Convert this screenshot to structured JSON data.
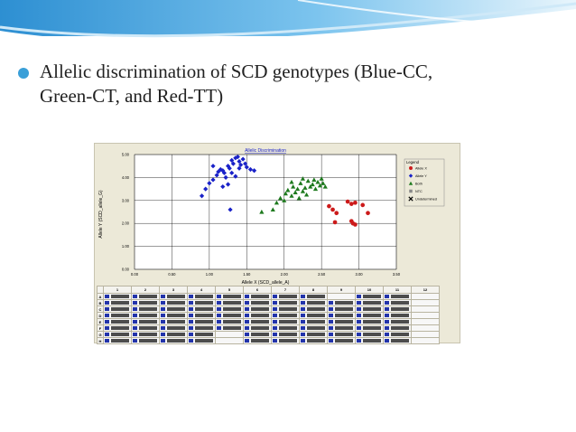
{
  "slide": {
    "bullet_line1": "Allelic discrimination of SCD genotypes (Blue-CC,",
    "bullet_line2": "Green-CT, and Red-TT)",
    "accent_color": "#3a9fd8"
  },
  "chart_data": {
    "type": "scatter",
    "title": "Allelic Discrimination",
    "xlabel": "Allele X (SCD_allele_A)",
    "ylabel": "Allele Y (SCD_allele_G)",
    "xlim": [
      0,
      3.5
    ],
    "ylim": [
      0,
      5
    ],
    "x_ticks": [
      "0.00",
      "0.50",
      "1.00",
      "1.50",
      "2.00",
      "2.50",
      "3.00",
      "3.50"
    ],
    "y_ticks": [
      "0.00",
      "1.00",
      "2.00",
      "3.00",
      "4.00",
      "5.00"
    ],
    "grid": true,
    "legend_position": "right",
    "legend_title": "Legend",
    "legend": [
      {
        "label": "Allele X",
        "marker": "circle",
        "color": "#cc1a1a"
      },
      {
        "label": "Allele Y",
        "marker": "diamond",
        "color": "#1a22c8"
      },
      {
        "label": "Both",
        "marker": "triangle",
        "color": "#1e7a1e"
      },
      {
        "label": "NTC",
        "marker": "square",
        "color": "#888888"
      },
      {
        "label": "Undetermined",
        "marker": "x",
        "color": "#000000"
      }
    ],
    "series": [
      {
        "name": "Allele Y",
        "marker": "diamond",
        "color": "#1a22c8",
        "points": [
          [
            0.9,
            3.2
          ],
          [
            0.95,
            3.5
          ],
          [
            1.0,
            3.75
          ],
          [
            1.05,
            3.9
          ],
          [
            1.1,
            4.1
          ],
          [
            1.12,
            4.25
          ],
          [
            1.15,
            4.35
          ],
          [
            1.18,
            4.3
          ],
          [
            1.2,
            4.2
          ],
          [
            1.22,
            4.0
          ],
          [
            1.25,
            4.5
          ],
          [
            1.27,
            4.4
          ],
          [
            1.3,
            4.75
          ],
          [
            1.32,
            4.6
          ],
          [
            1.35,
            4.85
          ],
          [
            1.38,
            4.9
          ],
          [
            1.4,
            4.7
          ],
          [
            1.42,
            4.55
          ],
          [
            1.45,
            4.8
          ],
          [
            1.48,
            4.6
          ],
          [
            1.5,
            4.45
          ],
          [
            1.3,
            4.2
          ],
          [
            1.25,
            3.7
          ],
          [
            1.35,
            4.05
          ],
          [
            1.55,
            4.35
          ],
          [
            1.6,
            4.3
          ],
          [
            1.05,
            4.5
          ],
          [
            1.18,
            3.6
          ],
          [
            1.28,
            2.6
          ],
          [
            1.4,
            4.4
          ]
        ]
      },
      {
        "name": "Both",
        "marker": "triangle",
        "color": "#1e7a1e",
        "points": [
          [
            1.7,
            2.5
          ],
          [
            1.85,
            2.6
          ],
          [
            1.9,
            2.9
          ],
          [
            1.95,
            3.1
          ],
          [
            2.0,
            3.0
          ],
          [
            2.02,
            3.3
          ],
          [
            2.05,
            3.45
          ],
          [
            2.1,
            3.2
          ],
          [
            2.12,
            3.6
          ],
          [
            2.15,
            3.35
          ],
          [
            2.18,
            3.5
          ],
          [
            2.2,
            3.1
          ],
          [
            2.22,
            3.75
          ],
          [
            2.25,
            3.4
          ],
          [
            2.28,
            3.55
          ],
          [
            2.3,
            3.25
          ],
          [
            2.32,
            3.85
          ],
          [
            2.35,
            3.6
          ],
          [
            2.38,
            3.7
          ],
          [
            2.4,
            3.9
          ],
          [
            2.42,
            3.5
          ],
          [
            2.45,
            3.8
          ],
          [
            2.48,
            3.65
          ],
          [
            2.5,
            3.95
          ],
          [
            2.52,
            3.75
          ],
          [
            2.55,
            3.6
          ],
          [
            2.1,
            3.8
          ],
          [
            2.25,
            3.95
          ]
        ]
      },
      {
        "name": "Allele X",
        "marker": "circle",
        "color": "#cc1a1a",
        "points": [
          [
            2.6,
            2.75
          ],
          [
            2.65,
            2.6
          ],
          [
            2.7,
            2.45
          ],
          [
            2.68,
            2.05
          ],
          [
            2.85,
            2.95
          ],
          [
            2.9,
            2.85
          ],
          [
            2.95,
            2.9
          ],
          [
            2.9,
            2.1
          ],
          [
            2.95,
            1.95
          ],
          [
            3.05,
            2.8
          ],
          [
            3.12,
            2.45
          ],
          [
            2.92,
            2.0
          ]
        ]
      }
    ]
  },
  "plate": {
    "columns": [
      "1",
      "2",
      "3",
      "4",
      "5",
      "6",
      "7",
      "8",
      "9",
      "10",
      "11",
      "12"
    ],
    "rows": [
      "A",
      "B",
      "C",
      "D",
      "E",
      "F",
      "G",
      "H"
    ]
  }
}
